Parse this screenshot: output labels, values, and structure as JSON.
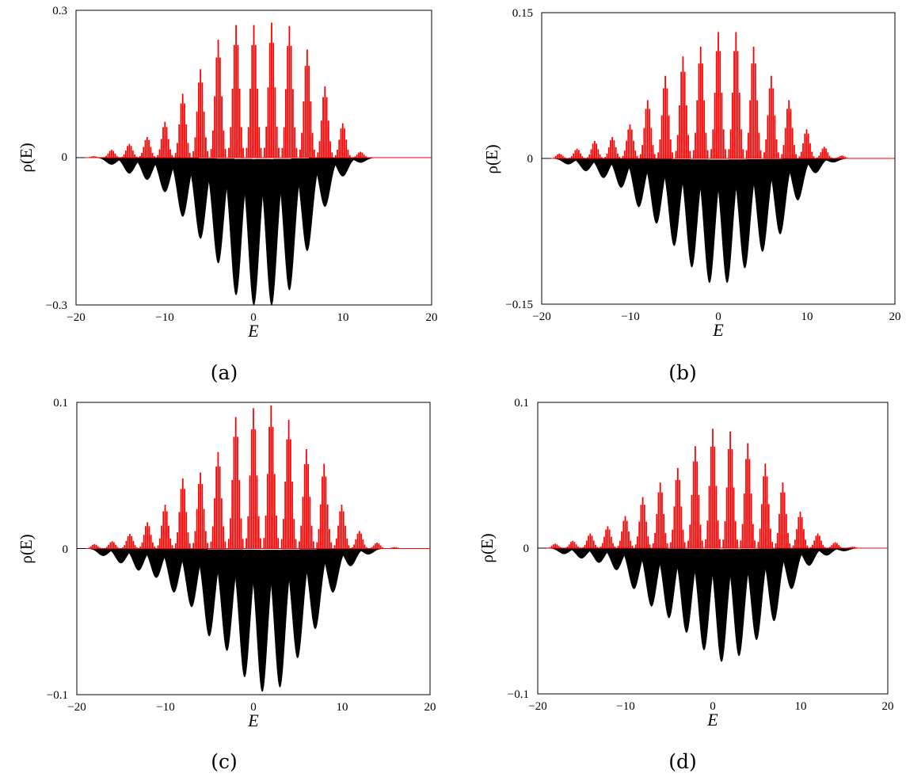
{
  "figure": {
    "colors": {
      "histogram": "#ff0000",
      "smoothed": "#000000",
      "axes": "#000000"
    },
    "panels": [
      {
        "caption": "(a)",
        "xlabel": "E",
        "ylabel": "ρ(E)",
        "xlim": [
          -20,
          20
        ],
        "ylim": [
          -0.3,
          0.3
        ],
        "xticks": [
          "−20",
          "−10",
          "0",
          "10",
          "20"
        ],
        "yticks": [
          "−0.3",
          "0",
          "0.3"
        ]
      },
      {
        "caption": "(b)",
        "xlabel": "E",
        "ylabel": "ρ(E)",
        "xlim": [
          -20,
          20
        ],
        "ylim": [
          -0.15,
          0.15
        ],
        "xticks": [
          "−20",
          "−10",
          "0",
          "10",
          "20"
        ],
        "yticks": [
          "−0.15",
          "0",
          "0.15"
        ]
      },
      {
        "caption": "(c)",
        "xlabel": "E",
        "ylabel": "ρ(E)",
        "xlim": [
          -20,
          20
        ],
        "ylim": [
          -0.1,
          0.1
        ],
        "xticks": [
          "−20",
          "−10",
          "0",
          "10",
          "20"
        ],
        "yticks": [
          "−0.1",
          "0",
          "0.1"
        ]
      },
      {
        "caption": "(d)",
        "xlabel": "E",
        "ylabel": "ρ(E)",
        "xlim": [
          -20,
          20
        ],
        "ylim": [
          -0.1,
          0.1
        ],
        "xticks": [
          "−20",
          "−10",
          "0",
          "10",
          "20"
        ],
        "yticks": [
          "−0.1",
          "0",
          "0.1"
        ]
      }
    ]
  },
  "chart_data": [
    {
      "type": "bar",
      "xlim": [
        -20,
        20
      ],
      "ylim": [
        -0.3,
        0.3
      ],
      "grid": false,
      "series": [
        {
          "kind": "histogram",
          "color": "#ff0000",
          "x": [
            -18,
            -16,
            -14,
            -12,
            -10,
            -8,
            -6,
            -4,
            -2,
            0,
            2,
            4,
            6,
            8,
            10,
            12
          ],
          "values": [
            0.003,
            0.016,
            0.028,
            0.042,
            0.073,
            0.13,
            0.18,
            0.24,
            0.27,
            0.27,
            0.275,
            0.268,
            0.22,
            0.145,
            0.07,
            0.012
          ]
        },
        {
          "kind": "smoothed",
          "color": "#000000",
          "x": [
            -16,
            -14,
            -12,
            -10,
            -8,
            -6,
            -4,
            -2,
            0,
            2,
            4,
            6,
            8,
            10,
            12
          ],
          "values": [
            -0.014,
            -0.032,
            -0.045,
            -0.07,
            -0.12,
            -0.165,
            -0.215,
            -0.28,
            -0.3,
            -0.3,
            -0.27,
            -0.19,
            -0.1,
            -0.038,
            -0.01
          ]
        }
      ]
    },
    {
      "type": "bar",
      "xlim": [
        -20,
        20
      ],
      "ylim": [
        -0.15,
        0.15
      ],
      "grid": false,
      "series": [
        {
          "kind": "histogram",
          "color": "#ff0000",
          "x": [
            -18,
            -16,
            -14,
            -12,
            -10,
            -8,
            -6,
            -4,
            -2,
            0,
            2,
            4,
            6,
            8,
            10,
            12,
            14
          ],
          "values": [
            0.005,
            0.01,
            0.018,
            0.022,
            0.035,
            0.06,
            0.085,
            0.105,
            0.115,
            0.13,
            0.13,
            0.115,
            0.085,
            0.06,
            0.03,
            0.012,
            0.003
          ]
        },
        {
          "kind": "smoothed",
          "color": "#000000",
          "x": [
            -17,
            -15,
            -13,
            -11,
            -9,
            -7,
            -5,
            -3,
            -1,
            1,
            3,
            5,
            7,
            9,
            11,
            13
          ],
          "values": [
            -0.006,
            -0.013,
            -0.02,
            -0.03,
            -0.05,
            -0.067,
            -0.09,
            -0.112,
            -0.128,
            -0.128,
            -0.113,
            -0.096,
            -0.078,
            -0.043,
            -0.015,
            -0.004
          ]
        }
      ]
    },
    {
      "type": "bar",
      "xlim": [
        -20,
        20
      ],
      "ylim": [
        -0.1,
        0.1
      ],
      "grid": false,
      "series": [
        {
          "kind": "histogram",
          "color": "#ff0000",
          "x": [
            -18,
            -16,
            -14,
            -12,
            -10,
            -8,
            -6,
            -4,
            -2,
            0,
            2,
            4,
            6,
            8,
            10,
            12,
            14,
            16
          ],
          "values": [
            0.003,
            0.005,
            0.01,
            0.018,
            0.03,
            0.048,
            0.052,
            0.066,
            0.09,
            0.096,
            0.098,
            0.088,
            0.068,
            0.058,
            0.03,
            0.012,
            0.004,
            0.001
          ]
        },
        {
          "kind": "smoothed",
          "color": "#000000",
          "x": [
            -17,
            -15,
            -13,
            -11,
            -9,
            -7,
            -5,
            -3,
            -1,
            1,
            3,
            5,
            7,
            9,
            11,
            13
          ],
          "values": [
            -0.005,
            -0.01,
            -0.015,
            -0.02,
            -0.03,
            -0.04,
            -0.06,
            -0.07,
            -0.088,
            -0.098,
            -0.095,
            -0.075,
            -0.055,
            -0.03,
            -0.012,
            -0.004
          ]
        }
      ]
    },
    {
      "type": "bar",
      "xlim": [
        -20,
        20
      ],
      "ylim": [
        -0.1,
        0.1
      ],
      "grid": false,
      "series": [
        {
          "kind": "histogram",
          "color": "#ff0000",
          "x": [
            -18,
            -16,
            -14,
            -12,
            -10,
            -8,
            -6,
            -4,
            -2,
            0,
            2,
            4,
            6,
            8,
            10,
            12,
            14,
            16
          ],
          "values": [
            0.003,
            0.005,
            0.01,
            0.015,
            0.022,
            0.035,
            0.045,
            0.055,
            0.07,
            0.082,
            0.08,
            0.072,
            0.058,
            0.045,
            0.025,
            0.01,
            0.004,
            0.001
          ]
        },
        {
          "kind": "smoothed",
          "color": "#000000",
          "x": [
            -17,
            -15,
            -13,
            -11,
            -9,
            -7,
            -5,
            -3,
            -1,
            1,
            3,
            5,
            7,
            9,
            11,
            13,
            15
          ],
          "values": [
            -0.004,
            -0.007,
            -0.01,
            -0.015,
            -0.028,
            -0.04,
            -0.048,
            -0.058,
            -0.07,
            -0.078,
            -0.074,
            -0.063,
            -0.05,
            -0.028,
            -0.012,
            -0.005,
            -0.002
          ]
        }
      ]
    }
  ]
}
